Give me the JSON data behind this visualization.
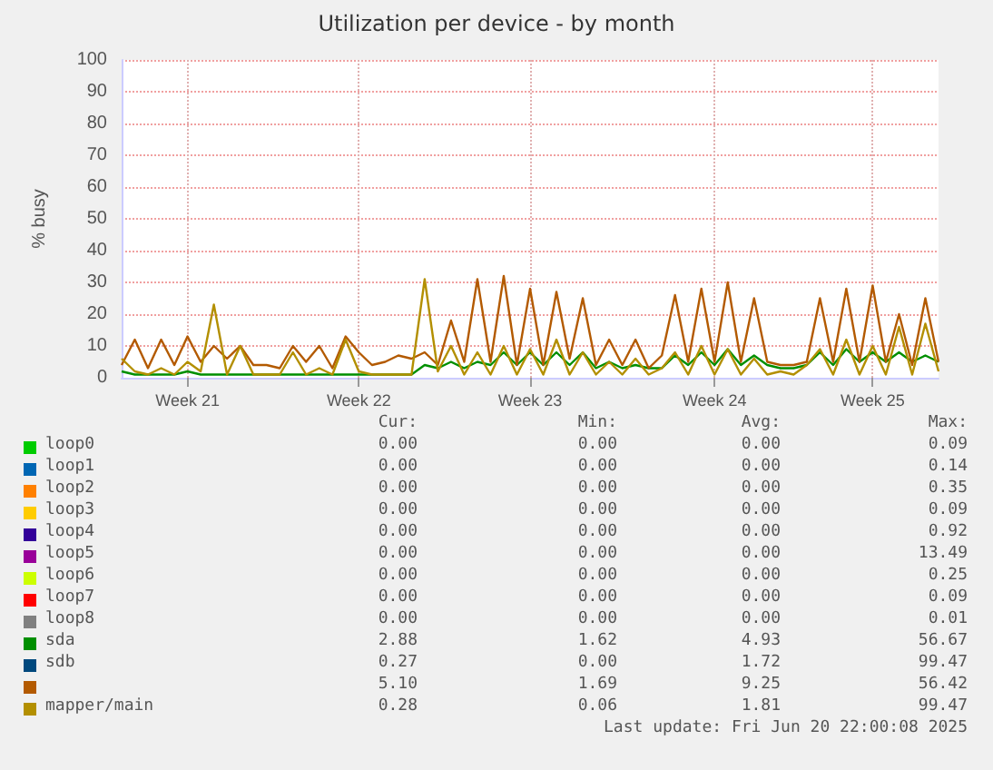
{
  "chart_data": {
    "type": "line",
    "title": "Utilization per device - by month",
    "ylabel": "% busy",
    "categories": [
      null,
      null,
      null,
      null,
      null,
      "Week 21",
      null,
      null,
      null,
      null,
      null,
      null,
      null,
      null,
      null,
      null,
      null,
      null,
      "Week 22",
      null,
      null,
      null,
      null,
      null,
      null,
      null,
      null,
      null,
      null,
      null,
      null,
      "Week 23",
      null,
      null,
      null,
      null,
      null,
      null,
      null,
      null,
      null,
      null,
      null,
      null,
      null,
      "Week 24",
      null,
      null,
      null,
      null,
      null,
      null,
      null,
      null,
      null,
      null,
      null,
      "Week 25",
      null,
      null,
      null,
      null,
      null
    ],
    "ylim": [
      0,
      100
    ],
    "yticks": [
      0,
      10,
      20,
      30,
      40,
      50,
      60,
      70,
      80,
      90,
      100
    ],
    "grid": true,
    "legend": "bottom",
    "marker": "none",
    "line_style": "solid",
    "series": [
      {
        "name": "loop0",
        "color": "#00cc00",
        "values": [
          null,
          null,
          null,
          null,
          null,
          null,
          null,
          null,
          null,
          null,
          null,
          null,
          null,
          null,
          null,
          null,
          null,
          null,
          null,
          null,
          null,
          null,
          null,
          null,
          null,
          null,
          null,
          null,
          null,
          null,
          null,
          null,
          null,
          null,
          null,
          null,
          null,
          null,
          null,
          null,
          null,
          null,
          null,
          null,
          null,
          null,
          null,
          null,
          null,
          null,
          null,
          null,
          null,
          null,
          null,
          null,
          null,
          null,
          null,
          null,
          null,
          null,
          null
        ]
      },
      {
        "name": "loop1",
        "color": "#0066b3",
        "values": [
          null,
          null,
          null,
          null,
          null,
          null,
          null,
          null,
          null,
          null,
          null,
          null,
          null,
          null,
          null,
          null,
          null,
          null,
          null,
          null,
          null,
          null,
          null,
          null,
          null,
          null,
          null,
          null,
          null,
          null,
          null,
          null,
          null,
          null,
          null,
          null,
          null,
          null,
          null,
          null,
          null,
          null,
          null,
          null,
          null,
          null,
          null,
          null,
          null,
          null,
          null,
          null,
          null,
          null,
          null,
          null,
          null,
          null,
          null,
          null,
          null,
          null,
          null
        ]
      },
      {
        "name": "loop2",
        "color": "#ff8000",
        "values": [
          null,
          null,
          null,
          null,
          null,
          null,
          null,
          null,
          null,
          null,
          null,
          null,
          null,
          null,
          null,
          null,
          null,
          null,
          null,
          null,
          null,
          null,
          null,
          null,
          null,
          null,
          null,
          null,
          null,
          null,
          null,
          null,
          null,
          null,
          null,
          null,
          null,
          null,
          null,
          null,
          null,
          null,
          null,
          null,
          null,
          null,
          null,
          null,
          null,
          null,
          null,
          null,
          null,
          null,
          null,
          null,
          null,
          null,
          null,
          null,
          null,
          null,
          null
        ]
      },
      {
        "name": "loop3",
        "color": "#ffcc00",
        "values": [
          null,
          null,
          null,
          null,
          null,
          null,
          null,
          null,
          null,
          null,
          null,
          null,
          null,
          null,
          null,
          null,
          null,
          null,
          null,
          null,
          null,
          null,
          null,
          null,
          null,
          null,
          null,
          null,
          null,
          null,
          null,
          null,
          null,
          null,
          null,
          null,
          null,
          null,
          null,
          null,
          null,
          null,
          null,
          null,
          null,
          null,
          null,
          null,
          null,
          null,
          null,
          null,
          null,
          null,
          null,
          null,
          null,
          null,
          null,
          null,
          null,
          null,
          null
        ]
      },
      {
        "name": "loop4",
        "color": "#330099",
        "values": [
          null,
          null,
          null,
          null,
          null,
          null,
          null,
          null,
          null,
          null,
          null,
          null,
          null,
          null,
          null,
          null,
          null,
          null,
          null,
          null,
          null,
          null,
          null,
          null,
          null,
          null,
          null,
          null,
          null,
          null,
          null,
          null,
          null,
          null,
          null,
          null,
          null,
          null,
          null,
          null,
          null,
          null,
          null,
          null,
          null,
          null,
          null,
          null,
          null,
          null,
          null,
          null,
          null,
          null,
          null,
          null,
          null,
          null,
          null,
          null,
          null,
          null,
          null
        ]
      },
      {
        "name": "loop5",
        "color": "#990099",
        "values": [
          null,
          null,
          null,
          null,
          null,
          null,
          null,
          null,
          null,
          null,
          null,
          null,
          null,
          null,
          null,
          null,
          null,
          null,
          null,
          null,
          null,
          null,
          null,
          null,
          null,
          null,
          null,
          null,
          null,
          null,
          null,
          null,
          null,
          null,
          null,
          null,
          null,
          null,
          null,
          null,
          null,
          null,
          null,
          null,
          null,
          null,
          null,
          null,
          null,
          null,
          null,
          null,
          null,
          null,
          null,
          null,
          null,
          null,
          null,
          null,
          null,
          null,
          null
        ]
      },
      {
        "name": "loop6",
        "color": "#ccff00",
        "values": [
          null,
          null,
          null,
          null,
          null,
          null,
          null,
          null,
          null,
          null,
          null,
          null,
          null,
          null,
          null,
          null,
          null,
          null,
          null,
          null,
          null,
          null,
          null,
          null,
          null,
          null,
          null,
          null,
          null,
          null,
          null,
          null,
          null,
          null,
          null,
          null,
          null,
          null,
          null,
          null,
          null,
          null,
          null,
          null,
          null,
          null,
          null,
          null,
          null,
          null,
          null,
          null,
          null,
          null,
          null,
          null,
          null,
          null,
          null,
          null,
          null,
          null,
          null
        ]
      },
      {
        "name": "loop7",
        "color": "#ff0000",
        "values": [
          null,
          null,
          null,
          null,
          null,
          null,
          null,
          null,
          null,
          null,
          null,
          null,
          null,
          null,
          null,
          null,
          null,
          null,
          null,
          null,
          null,
          null,
          null,
          null,
          null,
          null,
          null,
          null,
          null,
          null,
          null,
          null,
          null,
          null,
          null,
          null,
          null,
          null,
          null,
          null,
          null,
          null,
          null,
          null,
          null,
          null,
          null,
          null,
          null,
          null,
          null,
          null,
          null,
          null,
          null,
          null,
          null,
          null,
          null,
          null,
          null,
          null,
          null
        ]
      },
      {
        "name": "loop8",
        "color": "#808080",
        "values": [
          null,
          null,
          null,
          null,
          null,
          null,
          null,
          null,
          null,
          null,
          null,
          null,
          null,
          null,
          null,
          null,
          null,
          null,
          null,
          null,
          null,
          null,
          null,
          null,
          null,
          null,
          null,
          null,
          null,
          null,
          null,
          null,
          null,
          null,
          null,
          null,
          null,
          null,
          null,
          null,
          null,
          null,
          null,
          null,
          null,
          null,
          null,
          null,
          null,
          null,
          null,
          null,
          null,
          null,
          null,
          null,
          null,
          null,
          null,
          null,
          null,
          null,
          null
        ]
      },
      {
        "name": "sda",
        "color": "#008f00",
        "values": [
          2,
          1,
          1,
          1,
          1,
          2,
          1,
          1,
          1,
          1,
          1,
          1,
          1,
          1,
          1,
          1,
          1,
          1,
          1,
          1,
          1,
          1,
          1,
          4,
          3,
          5,
          3,
          5,
          4,
          8,
          4,
          8,
          4,
          8,
          4,
          8,
          3,
          5,
          3,
          4,
          3,
          3,
          7,
          4,
          8,
          4,
          9,
          4,
          7,
          4,
          3,
          3,
          4,
          8,
          4,
          9,
          5,
          8,
          5,
          8,
          5,
          7,
          5
        ]
      },
      {
        "name": "sdb",
        "color": "#00487d",
        "values": [
          null,
          null,
          null,
          null,
          null,
          null,
          null,
          null,
          null,
          null,
          null,
          null,
          null,
          null,
          null,
          null,
          null,
          null,
          null,
          null,
          null,
          null,
          null,
          null,
          null,
          null,
          null,
          null,
          null,
          null,
          null,
          null,
          null,
          null,
          null,
          null,
          null,
          null,
          null,
          null,
          null,
          null,
          null,
          null,
          null,
          null,
          null,
          null,
          null,
          null,
          null,
          null,
          null,
          null,
          null,
          null,
          null,
          null,
          null,
          null,
          null,
          null,
          null
        ]
      },
      {
        "name": null,
        "color": "#b35a00",
        "values": [
          4,
          12,
          3,
          12,
          4,
          13,
          5,
          10,
          6,
          10,
          4,
          4,
          3,
          10,
          5,
          10,
          3,
          13,
          8,
          4,
          5,
          7,
          6,
          8,
          4,
          18,
          5,
          31,
          5,
          32,
          4,
          28,
          4,
          27,
          6,
          25,
          4,
          12,
          4,
          12,
          3,
          7,
          26,
          5,
          28,
          5,
          30,
          5,
          25,
          5,
          4,
          4,
          5,
          25,
          5,
          28,
          5,
          29,
          5,
          20,
          4,
          25,
          5
        ]
      },
      {
        "name": "mapper/main",
        "color": "#b38f00",
        "values": [
          6,
          2,
          1,
          3,
          1,
          5,
          2,
          23,
          1,
          10,
          1,
          1,
          1,
          8,
          1,
          3,
          1,
          12,
          2,
          1,
          1,
          1,
          1,
          31,
          2,
          10,
          1,
          8,
          1,
          10,
          1,
          9,
          1,
          12,
          1,
          8,
          1,
          5,
          1,
          6,
          1,
          3,
          8,
          1,
          10,
          1,
          9,
          1,
          6,
          1,
          2,
          1,
          4,
          9,
          1,
          12,
          1,
          10,
          1,
          16,
          1,
          17,
          2
        ]
      }
    ],
    "annotations": [
      "Cur:",
      "Min:",
      "Avg:",
      "Max:",
      "0.00",
      "0.00",
      "0.00",
      "0.09",
      "0.00",
      "0.00",
      "0.00",
      "0.14",
      "0.00",
      "0.00",
      "0.00",
      "0.35",
      "0.00",
      "0.00",
      "0.00",
      "0.09",
      "0.00",
      "0.00",
      "0.00",
      "0.92",
      "0.00",
      "0.00",
      "0.00",
      "13.49",
      "0.00",
      "0.00",
      "0.00",
      "0.25",
      "0.00",
      "0.00",
      "0.00",
      "0.09",
      "0.00",
      "0.00",
      "0.00",
      "0.01",
      "2.88",
      "1.62",
      "4.93",
      "56.67",
      "0.27",
      "0.00",
      "1.72",
      "99.47",
      "5.10",
      "1.69",
      "9.25",
      "56.42",
      "0.28",
      "0.06",
      "1.81",
      "99.47",
      "Last update: Fri Jun 20 22:00:08 2025"
    ]
  }
}
